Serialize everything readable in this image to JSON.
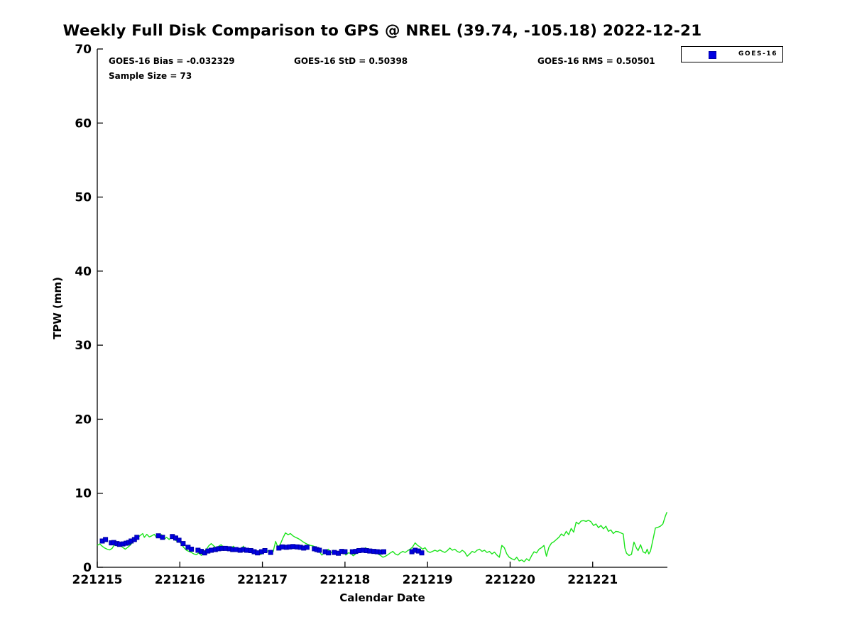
{
  "title": "Weekly Full Disk Comparison to GPS @ NREL (39.74, -105.18) 2022-12-21",
  "stats": {
    "bias": "GOES-16 Bias = -0.032329",
    "std": "GOES-16 StD = 0.50398",
    "rms": "GOES-16 RMS = 0.50501",
    "sample": "Sample Size = 73"
  },
  "legend": {
    "items": [
      {
        "label": "GOES-16",
        "marker": "square",
        "color": "#0000e0"
      }
    ]
  },
  "chart_data": {
    "type": "line+scatter",
    "title": "Weekly Full Disk Comparison to GPS @ NREL (39.74, -105.18) 2022-12-21",
    "xlabel": "Calendar Date",
    "ylabel": "TPW (mm)",
    "ylim": [
      0,
      70
    ],
    "yticks": [
      0,
      10,
      20,
      30,
      40,
      50,
      60,
      70
    ],
    "xtick_labels": [
      "221215",
      "221216",
      "221217",
      "221218",
      "221219",
      "221220",
      "221221"
    ],
    "xtick_positions": [
      0,
      1,
      2,
      3,
      4,
      5,
      6
    ],
    "xlim": [
      0,
      6.905
    ],
    "x_unit": "days since 221215",
    "grid": false,
    "legend_position": "outside-top-right",
    "series": [
      {
        "name": "GPS",
        "type": "line",
        "color": "#1be41b",
        "points": [
          [
            0.0,
            2.95
          ],
          [
            0.03,
            3.15
          ],
          [
            0.06,
            2.85
          ],
          [
            0.09,
            2.6
          ],
          [
            0.12,
            2.45
          ],
          [
            0.15,
            2.35
          ],
          [
            0.18,
            2.55
          ],
          [
            0.21,
            3.1
          ],
          [
            0.24,
            2.9
          ],
          [
            0.27,
            3.35
          ],
          [
            0.3,
            2.75
          ],
          [
            0.34,
            2.45
          ],
          [
            0.37,
            2.7
          ],
          [
            0.4,
            3.0
          ],
          [
            0.43,
            3.4
          ],
          [
            0.46,
            3.7
          ],
          [
            0.49,
            4.0
          ],
          [
            0.52,
            4.3
          ],
          [
            0.55,
            4.55
          ],
          [
            0.57,
            4.05
          ],
          [
            0.6,
            4.45
          ],
          [
            0.63,
            4.1
          ],
          [
            0.66,
            4.25
          ],
          [
            0.69,
            4.45
          ],
          [
            0.72,
            4.0
          ],
          [
            0.75,
            4.3
          ],
          [
            0.78,
            4.4
          ],
          [
            0.81,
            3.8
          ],
          [
            0.84,
            4.05
          ],
          [
            0.87,
            3.75
          ],
          [
            0.9,
            4.1
          ],
          [
            0.93,
            3.8
          ],
          [
            0.96,
            3.55
          ],
          [
            1.0,
            3.4
          ],
          [
            1.02,
            3.1
          ],
          [
            1.05,
            2.65
          ],
          [
            1.08,
            2.3
          ],
          [
            1.11,
            2.15
          ],
          [
            1.14,
            2.0
          ],
          [
            1.17,
            1.8
          ],
          [
            1.2,
            1.7
          ],
          [
            1.23,
            1.95
          ],
          [
            1.26,
            1.6
          ],
          [
            1.29,
            2.1
          ],
          [
            1.32,
            2.4
          ],
          [
            1.35,
            2.9
          ],
          [
            1.38,
            3.2
          ],
          [
            1.41,
            2.9
          ],
          [
            1.44,
            2.65
          ],
          [
            1.47,
            2.85
          ],
          [
            1.5,
            3.05
          ],
          [
            1.53,
            2.7
          ],
          [
            1.56,
            2.35
          ],
          [
            1.59,
            2.25
          ],
          [
            1.62,
            2.6
          ],
          [
            1.65,
            2.85
          ],
          [
            1.68,
            2.45
          ],
          [
            1.71,
            2.15
          ],
          [
            1.74,
            2.4
          ],
          [
            1.77,
            2.85
          ],
          [
            1.8,
            2.35
          ],
          [
            1.83,
            2.15
          ],
          [
            1.86,
            2.35
          ],
          [
            1.89,
            2.05
          ],
          [
            1.92,
            1.8
          ],
          [
            1.95,
            2.05
          ],
          [
            1.98,
            1.7
          ],
          [
            2.01,
            2.1
          ],
          [
            2.04,
            2.0
          ],
          [
            2.07,
            2.25
          ],
          [
            2.1,
            1.85
          ],
          [
            2.13,
            2.1
          ],
          [
            2.16,
            3.5
          ],
          [
            2.19,
            2.65
          ],
          [
            2.22,
            3.2
          ],
          [
            2.25,
            4.0
          ],
          [
            2.28,
            4.65
          ],
          [
            2.31,
            4.4
          ],
          [
            2.34,
            4.55
          ],
          [
            2.37,
            4.25
          ],
          [
            2.4,
            4.05
          ],
          [
            2.43,
            3.9
          ],
          [
            2.46,
            3.7
          ],
          [
            2.49,
            3.45
          ],
          [
            2.52,
            3.25
          ],
          [
            2.55,
            3.1
          ],
          [
            2.58,
            2.95
          ],
          [
            2.61,
            2.9
          ],
          [
            2.64,
            2.75
          ],
          [
            2.67,
            2.45
          ],
          [
            2.72,
            1.65
          ],
          [
            2.75,
            1.95
          ],
          [
            2.77,
            2.3
          ],
          [
            2.8,
            2.45
          ],
          [
            2.83,
            1.95
          ],
          [
            2.86,
            2.3
          ],
          [
            2.89,
            2.15
          ],
          [
            2.92,
            1.8
          ],
          [
            2.95,
            2.05
          ],
          [
            2.98,
            2.2
          ],
          [
            3.01,
            1.65
          ],
          [
            3.04,
            1.95
          ],
          [
            3.07,
            1.9
          ],
          [
            3.1,
            1.55
          ],
          [
            3.13,
            1.8
          ],
          [
            3.16,
            2.15
          ],
          [
            3.19,
            2.45
          ],
          [
            3.22,
            2.3
          ],
          [
            3.25,
            2.65
          ],
          [
            3.28,
            2.35
          ],
          [
            3.31,
            2.15
          ],
          [
            3.34,
            1.95
          ],
          [
            3.37,
            2.25
          ],
          [
            3.4,
            1.8
          ],
          [
            3.43,
            1.6
          ],
          [
            3.46,
            1.35
          ],
          [
            3.49,
            1.5
          ],
          [
            3.52,
            1.7
          ],
          [
            3.55,
            1.95
          ],
          [
            3.58,
            2.15
          ],
          [
            3.61,
            1.8
          ],
          [
            3.64,
            1.65
          ],
          [
            3.67,
            1.95
          ],
          [
            3.7,
            2.15
          ],
          [
            3.73,
            2.0
          ],
          [
            3.76,
            2.25
          ],
          [
            3.79,
            2.45
          ],
          [
            3.82,
            2.75
          ],
          [
            3.85,
            3.3
          ],
          [
            3.88,
            2.95
          ],
          [
            3.91,
            2.75
          ],
          [
            3.94,
            2.45
          ],
          [
            3.97,
            2.65
          ],
          [
            4.0,
            2.15
          ],
          [
            4.03,
            2.0
          ],
          [
            4.06,
            2.15
          ],
          [
            4.09,
            2.3
          ],
          [
            4.12,
            2.15
          ],
          [
            4.15,
            2.35
          ],
          [
            4.18,
            2.15
          ],
          [
            4.21,
            2.0
          ],
          [
            4.24,
            2.25
          ],
          [
            4.27,
            2.6
          ],
          [
            4.3,
            2.3
          ],
          [
            4.33,
            2.45
          ],
          [
            4.36,
            2.15
          ],
          [
            4.39,
            2.0
          ],
          [
            4.42,
            2.3
          ],
          [
            4.45,
            2.05
          ],
          [
            4.48,
            1.5
          ],
          [
            4.51,
            1.8
          ],
          [
            4.54,
            2.15
          ],
          [
            4.57,
            2.0
          ],
          [
            4.6,
            2.3
          ],
          [
            4.63,
            2.45
          ],
          [
            4.66,
            2.15
          ],
          [
            4.69,
            2.3
          ],
          [
            4.72,
            2.0
          ],
          [
            4.75,
            2.15
          ],
          [
            4.78,
            1.8
          ],
          [
            4.81,
            2.05
          ],
          [
            4.84,
            1.65
          ],
          [
            4.87,
            1.35
          ],
          [
            4.9,
            2.95
          ],
          [
            4.93,
            2.65
          ],
          [
            4.96,
            1.8
          ],
          [
            4.99,
            1.35
          ],
          [
            5.02,
            1.15
          ],
          [
            5.05,
            1.0
          ],
          [
            5.08,
            1.35
          ],
          [
            5.11,
            0.85
          ],
          [
            5.14,
            1.0
          ],
          [
            5.17,
            0.75
          ],
          [
            5.2,
            1.15
          ],
          [
            5.23,
            0.9
          ],
          [
            5.26,
            1.55
          ],
          [
            5.29,
            2.1
          ],
          [
            5.32,
            1.95
          ],
          [
            5.35,
            2.45
          ],
          [
            5.38,
            2.65
          ],
          [
            5.41,
            2.95
          ],
          [
            5.44,
            1.5
          ],
          [
            5.47,
            2.7
          ],
          [
            5.5,
            3.25
          ],
          [
            5.53,
            3.45
          ],
          [
            5.56,
            3.75
          ],
          [
            5.59,
            4.05
          ],
          [
            5.62,
            4.5
          ],
          [
            5.65,
            4.25
          ],
          [
            5.68,
            4.85
          ],
          [
            5.71,
            4.4
          ],
          [
            5.74,
            5.25
          ],
          [
            5.77,
            4.75
          ],
          [
            5.8,
            6.1
          ],
          [
            5.83,
            5.85
          ],
          [
            5.86,
            6.25
          ],
          [
            5.89,
            6.3
          ],
          [
            5.92,
            6.2
          ],
          [
            5.95,
            6.35
          ],
          [
            5.98,
            6.15
          ],
          [
            6.01,
            5.65
          ],
          [
            6.04,
            5.85
          ],
          [
            6.07,
            5.35
          ],
          [
            6.1,
            5.65
          ],
          [
            6.13,
            5.2
          ],
          [
            6.16,
            5.55
          ],
          [
            6.19,
            4.85
          ],
          [
            6.22,
            5.05
          ],
          [
            6.25,
            4.55
          ],
          [
            6.28,
            4.85
          ],
          [
            6.31,
            4.8
          ],
          [
            6.34,
            4.65
          ],
          [
            6.37,
            4.5
          ],
          [
            6.39,
            2.6
          ],
          [
            6.41,
            1.9
          ],
          [
            6.44,
            1.6
          ],
          [
            6.47,
            1.75
          ],
          [
            6.5,
            3.4
          ],
          [
            6.53,
            2.6
          ],
          [
            6.55,
            2.25
          ],
          [
            6.58,
            3.05
          ],
          [
            6.61,
            2.1
          ],
          [
            6.64,
            1.9
          ],
          [
            6.66,
            2.45
          ],
          [
            6.68,
            1.8
          ],
          [
            6.7,
            2.2
          ],
          [
            6.73,
            3.7
          ],
          [
            6.76,
            5.3
          ],
          [
            6.79,
            5.4
          ],
          [
            6.82,
            5.55
          ],
          [
            6.85,
            5.85
          ],
          [
            6.88,
            6.9
          ],
          [
            6.9,
            7.45
          ]
        ]
      },
      {
        "name": "GOES-16",
        "type": "scatter",
        "marker": "square",
        "color": "#0000e0",
        "points": [
          [
            0.06,
            3.55
          ],
          [
            0.1,
            3.75
          ],
          [
            0.17,
            3.3
          ],
          [
            0.2,
            3.35
          ],
          [
            0.24,
            3.2
          ],
          [
            0.27,
            3.1
          ],
          [
            0.31,
            3.15
          ],
          [
            0.35,
            3.25
          ],
          [
            0.38,
            3.35
          ],
          [
            0.41,
            3.55
          ],
          [
            0.45,
            3.75
          ],
          [
            0.48,
            4.05
          ],
          [
            0.74,
            4.25
          ],
          [
            0.79,
            4.05
          ],
          [
            0.91,
            4.15
          ],
          [
            0.95,
            3.95
          ],
          [
            0.99,
            3.65
          ],
          [
            1.04,
            3.2
          ],
          [
            1.1,
            2.7
          ],
          [
            1.14,
            2.45
          ],
          [
            1.22,
            2.3
          ],
          [
            1.26,
            2.15
          ],
          [
            1.3,
            1.95
          ],
          [
            1.34,
            2.2
          ],
          [
            1.38,
            2.3
          ],
          [
            1.43,
            2.4
          ],
          [
            1.47,
            2.5
          ],
          [
            1.51,
            2.55
          ],
          [
            1.55,
            2.55
          ],
          [
            1.6,
            2.5
          ],
          [
            1.64,
            2.4
          ],
          [
            1.68,
            2.4
          ],
          [
            1.73,
            2.3
          ],
          [
            1.77,
            2.4
          ],
          [
            1.81,
            2.3
          ],
          [
            1.86,
            2.25
          ],
          [
            1.9,
            2.1
          ],
          [
            1.94,
            1.95
          ],
          [
            1.99,
            2.1
          ],
          [
            2.03,
            2.25
          ],
          [
            2.1,
            2.0
          ],
          [
            2.2,
            2.6
          ],
          [
            2.24,
            2.75
          ],
          [
            2.29,
            2.7
          ],
          [
            2.33,
            2.75
          ],
          [
            2.37,
            2.8
          ],
          [
            2.42,
            2.75
          ],
          [
            2.46,
            2.7
          ],
          [
            2.5,
            2.6
          ],
          [
            2.54,
            2.7
          ],
          [
            2.63,
            2.5
          ],
          [
            2.66,
            2.4
          ],
          [
            2.69,
            2.3
          ],
          [
            2.76,
            2.1
          ],
          [
            2.8,
            1.95
          ],
          [
            2.87,
            2.0
          ],
          [
            2.92,
            1.9
          ],
          [
            2.96,
            2.15
          ],
          [
            3.0,
            2.1
          ],
          [
            3.09,
            2.1
          ],
          [
            3.13,
            2.15
          ],
          [
            3.17,
            2.25
          ],
          [
            3.22,
            2.3
          ],
          [
            3.26,
            2.25
          ],
          [
            3.3,
            2.2
          ],
          [
            3.35,
            2.15
          ],
          [
            3.39,
            2.1
          ],
          [
            3.43,
            2.05
          ],
          [
            3.47,
            2.1
          ],
          [
            3.81,
            2.1
          ],
          [
            3.85,
            2.3
          ],
          [
            3.89,
            2.2
          ],
          [
            3.93,
            1.95
          ]
        ]
      }
    ]
  }
}
